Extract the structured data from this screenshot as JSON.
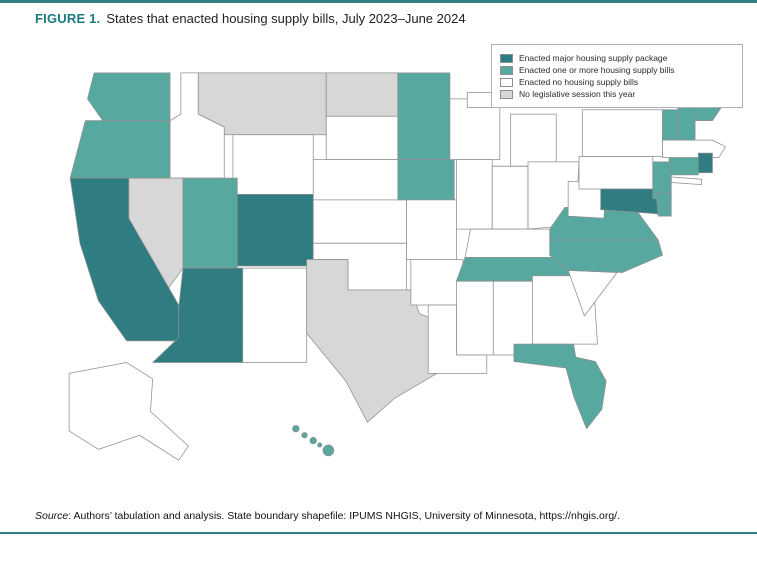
{
  "figure": {
    "label": "FIGURE 1.",
    "title": "States that enacted housing supply bills, July 2023–June 2024"
  },
  "source": {
    "prefix": "Source",
    "text": ": Authors’ tabulation and analysis. State boundary shapefile: IPUMS NHGIS, University of Minnesota, https://nhgis.org/."
  },
  "colors": {
    "accent_teal": "#2f7d80",
    "medium_teal": "#57a89f",
    "no_bills_white": "#ffffff",
    "no_session_gray": "#d7d7d7",
    "state_border": "#8f8f8f"
  },
  "chart_data": {
    "type": "choropleth",
    "region": "United States (50 states)",
    "title": "States that enacted housing supply bills, July 2023–June 2024",
    "legend_position": "top-right",
    "categories": [
      {
        "key": "major_package",
        "label": "Enacted major housing supply package",
        "color": "#2f7d80"
      },
      {
        "key": "one_or_more_bills",
        "label": "Enacted one or more housing supply bills",
        "color": "#57a89f"
      },
      {
        "key": "no_bills",
        "label": "Enacted no housing supply bills",
        "color": "#ffffff"
      },
      {
        "key": "no_session",
        "label": "No legislative session this year",
        "color": "#d7d7d7"
      }
    ],
    "state_categories": {
      "major_package": [
        "CA",
        "AZ",
        "CO",
        "MD",
        "RI"
      ],
      "one_or_more_bills": [
        "WA",
        "OR",
        "UT",
        "MN",
        "IA",
        "ME",
        "VT",
        "NH",
        "CT",
        "NJ",
        "DE",
        "VA",
        "NC",
        "TN",
        "FL",
        "HI"
      ],
      "no_bills": [
        "ID",
        "WY",
        "NM",
        "SD",
        "NE",
        "KS",
        "OK",
        "MO",
        "AR",
        "LA",
        "MS",
        "AL",
        "GA",
        "SC",
        "KY",
        "WV",
        "OH",
        "IN",
        "IL",
        "MI",
        "WI",
        "PA",
        "NY",
        "MA",
        "AK"
      ],
      "no_session": [
        "MT",
        "ND",
        "NV",
        "TX"
      ]
    }
  }
}
